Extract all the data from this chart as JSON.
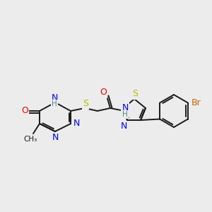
{
  "bg_color": "#ececec",
  "bond_color": "#1a1a1a",
  "bond_width": 1.4,
  "atom_colors": {
    "N": "#0000ee",
    "O": "#ee0000",
    "S": "#bbbb00",
    "Br": "#cc6600",
    "H": "#558888",
    "C": "#1a1a1a"
  },
  "font_size": 8.5
}
